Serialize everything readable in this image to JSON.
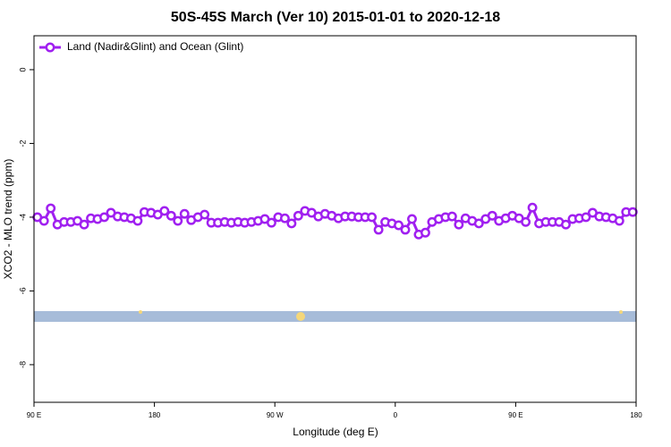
{
  "chart_data": {
    "type": "line",
    "title": "50S-45S March (Ver 10)   2015-01-01 to 2020-12-18",
    "x_label": "Longitude (deg E)",
    "y_label": "XCO2 - MLO trend (ppm)",
    "xlim": [
      90,
      540
    ],
    "xticks": [
      {
        "value": 90,
        "label": "90 E"
      },
      180,
      {
        "value": 270,
        "label": "90 W"
      },
      {
        "value": 360,
        "label": "0"
      },
      {
        "value": 450,
        "label": "90 E"
      },
      {
        "value": 540,
        "label": "180"
      }
    ],
    "ylim": [
      -9.02,
      0.92
    ],
    "yticks": [
      0,
      -2,
      -4,
      -6,
      -8
    ],
    "legend": "top-left",
    "x": [
      92.5,
      97.5,
      102.5,
      107.5,
      112.5,
      117.5,
      122.5,
      127.5,
      132.5,
      137.5,
      142.5,
      147.5,
      152.5,
      157.5,
      162.5,
      167.5,
      172.5,
      177.5,
      182.5,
      187.5,
      192.5,
      197.5,
      202.5,
      207.5,
      212.5,
      217.5,
      222.5,
      227.5,
      232.5,
      237.5,
      242.5,
      247.5,
      252.5,
      257.5,
      262.5,
      267.5,
      272.5,
      277.5,
      282.5,
      287.5,
      292.5,
      297.5,
      302.5,
      307.5,
      312.5,
      317.5,
      322.5,
      327.5,
      332.5,
      337.5,
      342.5,
      347.5,
      352.5,
      357.5,
      362.5,
      367.5,
      372.5,
      377.5,
      382.5,
      387.5,
      392.5,
      397.5,
      402.5,
      407.5,
      412.5,
      417.5,
      422.5,
      427.5,
      432.5,
      437.5,
      442.5,
      447.5,
      452.5,
      457.5,
      462.5,
      467.5,
      472.5,
      477.5,
      482.5,
      487.5,
      492.5,
      497.5,
      502.5,
      507.5,
      512.5,
      517.5,
      522.5,
      527.5,
      532.5,
      537.5
    ],
    "series": [
      {
        "name": "Land (Nadir&Glint) and Ocean (Glint)",
        "color": "#a020f0",
        "values": [
          -4.0,
          -4.1,
          -3.76,
          -4.2,
          -4.13,
          -4.13,
          -4.1,
          -4.2,
          -4.03,
          -4.05,
          -4.0,
          -3.88,
          -3.98,
          -4.0,
          -4.03,
          -4.1,
          -3.86,
          -3.88,
          -3.93,
          -3.83,
          -3.96,
          -4.1,
          -3.91,
          -4.08,
          -4.0,
          -3.93,
          -4.15,
          -4.15,
          -4.13,
          -4.15,
          -4.13,
          -4.15,
          -4.13,
          -4.1,
          -4.05,
          -4.15,
          -4.0,
          -4.03,
          -4.17,
          -3.96,
          -3.83,
          -3.88,
          -3.98,
          -3.91,
          -3.96,
          -4.03,
          -3.98,
          -3.98,
          -4.0,
          -4.0,
          -4.0,
          -4.34,
          -4.13,
          -4.17,
          -4.22,
          -4.34,
          -4.05,
          -4.47,
          -4.42,
          -4.13,
          -4.05,
          -4.0,
          -3.98,
          -4.2,
          -4.03,
          -4.1,
          -4.17,
          -4.05,
          -3.96,
          -4.1,
          -4.03,
          -3.96,
          -4.03,
          -4.13,
          -3.74,
          -4.17,
          -4.13,
          -4.13,
          -4.13,
          -4.2,
          -4.05,
          -4.03,
          -4.0,
          -3.88,
          -3.98,
          -4.0,
          -4.03,
          -4.1,
          -3.86,
          -3.86
        ]
      }
    ]
  }
}
